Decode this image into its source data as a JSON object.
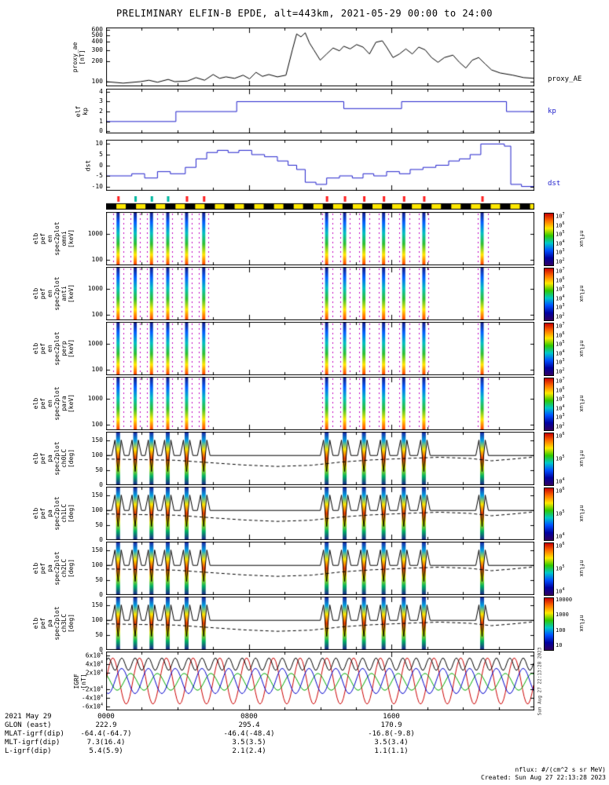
{
  "title": "PRELIMINARY ELFIN-B EPDE, alt=443km, 2021-05-29 00:00 to 24:00",
  "palette": {
    "line_blue": "#2222cc",
    "black": "#000000",
    "bar_yellow": "#ffe800",
    "zone_tick_red": "#ff2020",
    "zone_tick_teal": "#00b8a0",
    "magenta_dash": "#c000c0",
    "colorbar_stops": [
      "#c80000",
      "#ff7000",
      "#ffe800",
      "#30c800",
      "#00c8c8",
      "#0050ff",
      "#0000a0",
      "#300060"
    ],
    "energy_stripe_stops": [
      "#181880",
      "#0060ff",
      "#00c0c0",
      "#30c030",
      "#ffe800",
      "#ff3000"
    ],
    "pa_stripe_stops": [
      "#2020a0",
      "#00a0e0",
      "#ffe800",
      "#ff4000",
      "#d0e000",
      "#00b060",
      "#202090"
    ]
  },
  "science_zones": {
    "fractions": [
      0.028,
      0.068,
      0.106,
      0.144,
      0.188,
      0.228,
      0.515,
      0.557,
      0.602,
      0.648,
      0.695,
      0.742,
      0.878
    ],
    "tick_colors": [
      "#ff2020",
      "#00b8a0",
      "#00b8a0",
      "#00b8a0",
      "#ff2020",
      "#ff2020",
      "#ff2020",
      "#ff2020",
      "#ff2020",
      "#ff2020",
      "#ff2020",
      "#ff2020",
      "#ff2020"
    ]
  },
  "pa_overlays": {
    "solid_base": 100,
    "spike_high": 152,
    "spike_low": 46,
    "dashed": [
      [
        0,
        88
      ],
      [
        0.08,
        86
      ],
      [
        0.16,
        84
      ],
      [
        0.24,
        76
      ],
      [
        0.32,
        68
      ],
      [
        0.4,
        63
      ],
      [
        0.48,
        67
      ],
      [
        0.55,
        78
      ],
      [
        0.62,
        85
      ],
      [
        0.7,
        90
      ],
      [
        0.78,
        94
      ],
      [
        0.85,
        90
      ],
      [
        0.9,
        82
      ],
      [
        0.95,
        88
      ],
      [
        1,
        95
      ]
    ]
  },
  "chart_data": [
    {
      "id": "proxy_ae",
      "type": "line",
      "title": "proxy_AE index",
      "ylabel_lines": [
        "proxy_ae",
        "[nT]"
      ],
      "right_label": "proxy_AE",
      "right_label_color": "#000000",
      "line_color": "#000000",
      "yscale": "log",
      "ylim": [
        85,
        650
      ],
      "yticks": [
        100,
        200,
        300,
        400,
        500,
        600
      ],
      "xlim_hours": [
        0,
        24
      ],
      "points": [
        [
          0,
          100
        ],
        [
          0.04,
          95
        ],
        [
          0.08,
          100
        ],
        [
          0.1,
          105
        ],
        [
          0.12,
          98
        ],
        [
          0.145,
          108
        ],
        [
          0.16,
          100
        ],
        [
          0.19,
          102
        ],
        [
          0.21,
          115
        ],
        [
          0.23,
          105
        ],
        [
          0.25,
          128
        ],
        [
          0.265,
          112
        ],
        [
          0.28,
          118
        ],
        [
          0.3,
          112
        ],
        [
          0.32,
          125
        ],
        [
          0.335,
          110
        ],
        [
          0.35,
          138
        ],
        [
          0.365,
          120
        ],
        [
          0.38,
          128
        ],
        [
          0.4,
          118
        ],
        [
          0.42,
          125
        ],
        [
          0.435,
          300
        ],
        [
          0.445,
          520
        ],
        [
          0.455,
          470
        ],
        [
          0.465,
          540
        ],
        [
          0.475,
          380
        ],
        [
          0.485,
          300
        ],
        [
          0.5,
          210
        ],
        [
          0.515,
          260
        ],
        [
          0.53,
          320
        ],
        [
          0.545,
          290
        ],
        [
          0.555,
          340
        ],
        [
          0.57,
          310
        ],
        [
          0.585,
          360
        ],
        [
          0.6,
          330
        ],
        [
          0.615,
          260
        ],
        [
          0.63,
          390
        ],
        [
          0.645,
          410
        ],
        [
          0.655,
          330
        ],
        [
          0.67,
          230
        ],
        [
          0.685,
          260
        ],
        [
          0.7,
          310
        ],
        [
          0.715,
          260
        ],
        [
          0.73,
          330
        ],
        [
          0.745,
          300
        ],
        [
          0.76,
          230
        ],
        [
          0.775,
          195
        ],
        [
          0.79,
          230
        ],
        [
          0.81,
          250
        ],
        [
          0.825,
          195
        ],
        [
          0.84,
          160
        ],
        [
          0.855,
          210
        ],
        [
          0.87,
          230
        ],
        [
          0.885,
          185
        ],
        [
          0.9,
          150
        ],
        [
          0.92,
          135
        ],
        [
          0.95,
          125
        ],
        [
          0.975,
          115
        ],
        [
          1,
          112
        ]
      ]
    },
    {
      "id": "kp",
      "type": "step",
      "title": "Kp index",
      "ylabel_lines": [
        "elf",
        "kp"
      ],
      "right_label": "kp",
      "right_label_color": "#2222cc",
      "line_color": "#2222cc",
      "ylim": [
        -0.2,
        4.3
      ],
      "yticks": [
        0,
        1,
        2,
        3,
        4
      ],
      "points": [
        [
          0,
          1
        ],
        [
          0.163,
          2
        ],
        [
          0.305,
          3
        ],
        [
          0.555,
          2.3
        ],
        [
          0.69,
          3
        ],
        [
          0.935,
          2
        ],
        [
          1,
          2
        ]
      ]
    },
    {
      "id": "dst",
      "type": "step",
      "title": "Dst index",
      "ylabel_lines": [
        "dst"
      ],
      "right_label": "dst",
      "right_label_color": "#2222cc",
      "line_color": "#2222cc",
      "ylim": [
        -12,
        12
      ],
      "yticks": [
        -10,
        -5,
        0,
        5,
        10
      ],
      "points": [
        [
          0,
          -5
        ],
        [
          0.06,
          -4
        ],
        [
          0.09,
          -6
        ],
        [
          0.12,
          -3
        ],
        [
          0.15,
          -4
        ],
        [
          0.185,
          -1
        ],
        [
          0.21,
          3
        ],
        [
          0.235,
          6
        ],
        [
          0.26,
          7
        ],
        [
          0.285,
          6
        ],
        [
          0.31,
          7
        ],
        [
          0.34,
          5
        ],
        [
          0.37,
          4
        ],
        [
          0.4,
          2
        ],
        [
          0.425,
          0
        ],
        [
          0.445,
          -2
        ],
        [
          0.465,
          -8
        ],
        [
          0.49,
          -9
        ],
        [
          0.515,
          -6
        ],
        [
          0.545,
          -5
        ],
        [
          0.575,
          -6
        ],
        [
          0.6,
          -4
        ],
        [
          0.625,
          -5
        ],
        [
          0.655,
          -3
        ],
        [
          0.685,
          -4
        ],
        [
          0.71,
          -2
        ],
        [
          0.74,
          -1
        ],
        [
          0.77,
          0
        ],
        [
          0.8,
          2
        ],
        [
          0.825,
          3
        ],
        [
          0.85,
          5
        ],
        [
          0.875,
          10
        ],
        [
          0.93,
          9
        ],
        [
          0.945,
          -9
        ],
        [
          0.97,
          -10
        ],
        [
          1,
          -9
        ]
      ]
    },
    {
      "id": "epoch_bar",
      "type": "epoch-bar",
      "bar_color": "#ffe800",
      "black_segments": [
        [
          0,
          0.024
        ],
        [
          0.046,
          0.07
        ],
        [
          0.092,
          0.116
        ],
        [
          0.138,
          0.162
        ],
        [
          0.184,
          0.208
        ],
        [
          0.23,
          0.254
        ],
        [
          0.276,
          0.3
        ],
        [
          0.322,
          0.346
        ],
        [
          0.368,
          0.392
        ],
        [
          0.414,
          0.438
        ],
        [
          0.46,
          0.484
        ],
        [
          0.506,
          0.53
        ],
        [
          0.552,
          0.576
        ],
        [
          0.598,
          0.622
        ],
        [
          0.644,
          0.668
        ],
        [
          0.69,
          0.714
        ],
        [
          0.736,
          0.76
        ],
        [
          0.782,
          0.806
        ],
        [
          0.828,
          0.852
        ],
        [
          0.874,
          0.898
        ],
        [
          0.92,
          0.944
        ],
        [
          0.966,
          0.99
        ]
      ]
    },
    {
      "id": "spec_omni",
      "type": "energy-spec",
      "title": "EPDE omni energy spectrogram",
      "ylabel_lines": [
        "elb",
        "pef",
        "en",
        "spec2plot",
        "omni",
        "[keV]"
      ],
      "yscale": "log",
      "ylim": [
        60,
        7000
      ],
      "yticks": [
        100,
        1000
      ],
      "colorbar": {
        "ticks": [
          "10^7",
          "10^6",
          "10^5",
          "10^4",
          "10^3",
          "10^2"
        ],
        "label": "nflux"
      }
    },
    {
      "id": "spec_anti",
      "type": "energy-spec",
      "title": "EPDE anti energy spectrogram",
      "ylabel_lines": [
        "elb",
        "pef",
        "en",
        "spec2plot",
        "anti",
        "[keV]"
      ],
      "yscale": "log",
      "ylim": [
        60,
        7000
      ],
      "yticks": [
        100,
        1000
      ],
      "colorbar": {
        "ticks": [
          "10^7",
          "10^6",
          "10^5",
          "10^4",
          "10^3",
          "10^2"
        ],
        "label": "nflux"
      }
    },
    {
      "id": "spec_perp",
      "type": "energy-spec",
      "title": "EPDE perp energy spectrogram",
      "ylabel_lines": [
        "elb",
        "pef",
        "en",
        "spec2plot",
        "perp",
        "[keV]"
      ],
      "yscale": "log",
      "ylim": [
        60,
        7000
      ],
      "yticks": [
        100,
        1000
      ],
      "colorbar": {
        "ticks": [
          "10^7",
          "10^6",
          "10^5",
          "10^4",
          "10^3",
          "10^2"
        ],
        "label": "nflux"
      }
    },
    {
      "id": "spec_para",
      "type": "energy-spec",
      "title": "EPDE para energy spectrogram",
      "ylabel_lines": [
        "elb",
        "pef",
        "en",
        "spec2plot",
        "para",
        "[keV]"
      ],
      "yscale": "log",
      "ylim": [
        60,
        7000
      ],
      "yticks": [
        100,
        1000
      ],
      "colorbar": {
        "ticks": [
          "10^7",
          "10^6",
          "10^5",
          "10^4",
          "10^3",
          "10^2"
        ],
        "label": "nflux"
      }
    },
    {
      "id": "pa_ch0",
      "type": "pa-spec",
      "title": "EPDE pitch-angle spectrogram ch0",
      "ylabel_lines": [
        "elb",
        "pef",
        "pa",
        "spec2plot",
        "ch0LC",
        "[deg]"
      ],
      "ylim": [
        0,
        180
      ],
      "yticks": [
        0,
        50,
        100,
        150
      ],
      "colorbar": {
        "ticks": [
          "10^6",
          "10^5",
          "10^4"
        ],
        "label": "nflux"
      }
    },
    {
      "id": "pa_ch1",
      "type": "pa-spec",
      "title": "EPDE pitch-angle spectrogram ch1",
      "ylabel_lines": [
        "elb",
        "pef",
        "pa",
        "spec2plot",
        "ch1LC",
        "[deg]"
      ],
      "ylim": [
        0,
        180
      ],
      "yticks": [
        0,
        50,
        100,
        150
      ],
      "colorbar": {
        "ticks": [
          "10^6",
          "10^5",
          "10^4"
        ],
        "label": "nflux"
      }
    },
    {
      "id": "pa_ch2",
      "type": "pa-spec",
      "title": "EPDE pitch-angle spectrogram ch2",
      "ylabel_lines": [
        "elb",
        "pef",
        "pa",
        "spec2plot",
        "ch2LC",
        "[deg]"
      ],
      "ylim": [
        0,
        180
      ],
      "yticks": [
        0,
        50,
        100,
        150
      ],
      "colorbar": {
        "ticks": [
          "10^6",
          "10^5",
          "10^4"
        ],
        "label": "nflux"
      }
    },
    {
      "id": "pa_ch3",
      "type": "pa-spec",
      "title": "EPDE pitch-angle spectrogram ch3",
      "ylabel_lines": [
        "elb",
        "pef",
        "pa",
        "spec2plot",
        "ch3LC",
        "[deg]"
      ],
      "ylim": [
        0,
        180
      ],
      "yticks": [
        0,
        50,
        100,
        150
      ],
      "colorbar": {
        "ticks": [
          "10000",
          "1000",
          "100",
          "10"
        ],
        "label": "nflux"
      }
    },
    {
      "id": "igrf",
      "type": "igrf",
      "title": "IGRF magnetic field model",
      "ylabel_lines": [
        "IGRF",
        "[nT]"
      ],
      "ylim": [
        -70000,
        70000
      ],
      "ytick_defs": [
        {
          "v": 60000,
          "label": "6x10^4"
        },
        {
          "v": 40000,
          "label": "4x10^4"
        },
        {
          "v": 20000,
          "label": "2x10^4"
        },
        {
          "v": -20000,
          "label": "-2x10^4"
        },
        {
          "v": -40000,
          "label": "-4x10^4"
        },
        {
          "v": -60000,
          "label": "-6x10^4"
        }
      ],
      "series": [
        {
          "name": "b-red",
          "color": "#cc0000",
          "amp": 55000,
          "period_hours": 1.5,
          "phase": 0,
          "offset": 0
        },
        {
          "name": "b-green",
          "color": "#00aa00",
          "amp": 20000,
          "period_hours": 1.5,
          "phase": 2.1,
          "offset": -2000
        },
        {
          "name": "b-blue",
          "color": "#0000cc",
          "amp": 30000,
          "period_hours": 1.5,
          "phase": 4.2,
          "offset": 0
        },
        {
          "name": "b-black",
          "color": "#000000",
          "amp": 15000,
          "period_hours": 0.75,
          "phase": 0.5,
          "offset": 40000
        }
      ]
    }
  ],
  "bottom_axis": {
    "rows": [
      {
        "label": "2021 May 29",
        "values": [
          "0000",
          "0800",
          "1600"
        ]
      },
      {
        "label": "GLON (east)",
        "values": [
          "222.9",
          "295.4",
          "170.9"
        ]
      },
      {
        "label": "MLAT-igrf(dip)",
        "values": [
          "-64.4(-64.7)",
          "-46.4(-48.4)",
          "-16.8(-9.8)"
        ]
      },
      {
        "label": "MLT-igrf(dip)",
        "values": [
          "7.3(16.4)",
          "3.5(3.5)",
          "3.5(3.4)"
        ]
      },
      {
        "label": "L-igrf(dip)",
        "values": [
          "5.4(5.9)",
          "2.1(2.4)",
          "1.1(1.1)"
        ]
      }
    ]
  },
  "footer": {
    "nflux_units": "nflux: #/(cm^2 s sr MeV)",
    "created": "Created: Sun Aug 27 22:13:28 2023",
    "created_side": "Sun Aug 27 22:13:28 2023"
  }
}
